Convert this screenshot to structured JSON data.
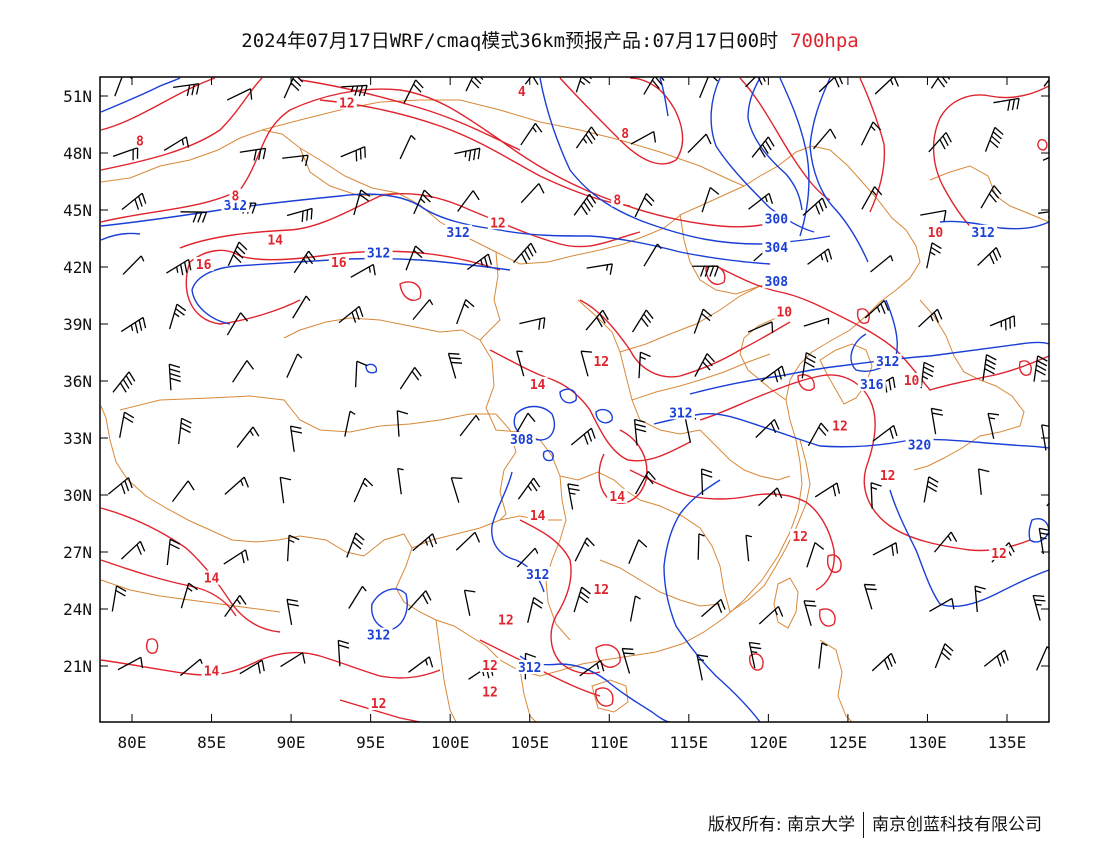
{
  "title": {
    "main": "2024年07月17日WRF/cmaq模式36km预报产品:07月17日00时",
    "level": "700hpa"
  },
  "axes": {
    "lat_labels": [
      "51N",
      "48N",
      "45N",
      "42N",
      "39N",
      "36N",
      "33N",
      "30N",
      "27N",
      "24N",
      "21N"
    ],
    "lat_values": [
      51,
      48,
      45,
      42,
      39,
      36,
      33,
      30,
      27,
      24,
      21
    ],
    "lon_labels": [
      "80E",
      "85E",
      "90E",
      "95E",
      "100E",
      "105E",
      "110E",
      "115E",
      "120E",
      "125E",
      "130E",
      "135E"
    ],
    "lon_values": [
      80,
      85,
      90,
      95,
      100,
      105,
      110,
      115,
      120,
      125,
      130,
      135
    ],
    "lon_range": [
      78,
      138
    ],
    "lat_range": [
      18,
      52
    ]
  },
  "colors": {
    "height_contour": "#1a3fd6",
    "temperature_contour": "#e0242e",
    "border": "#d8893a",
    "wind_barb": "#000000"
  },
  "labels": {
    "height": [
      {
        "text": "312",
        "lon": 86.5,
        "lat": 45.2
      },
      {
        "text": "312",
        "lon": 100.5,
        "lat": 43.8
      },
      {
        "text": "312",
        "lon": 95.5,
        "lat": 42.7
      },
      {
        "text": "300",
        "lon": 120.5,
        "lat": 44.5
      },
      {
        "text": "304",
        "lon": 120.5,
        "lat": 43.0
      },
      {
        "text": "308",
        "lon": 120.5,
        "lat": 41.2
      },
      {
        "text": "312",
        "lon": 133.5,
        "lat": 43.8
      },
      {
        "text": "312",
        "lon": 127.5,
        "lat": 37.0
      },
      {
        "text": "316",
        "lon": 126.5,
        "lat": 35.8
      },
      {
        "text": "312",
        "lon": 114.5,
        "lat": 34.3
      },
      {
        "text": "308",
        "lon": 104.5,
        "lat": 32.9
      },
      {
        "text": "320",
        "lon": 129.5,
        "lat": 32.6
      },
      {
        "text": "312",
        "lon": 105.5,
        "lat": 25.8
      },
      {
        "text": "312",
        "lon": 95.5,
        "lat": 22.6
      },
      {
        "text": "312",
        "lon": 105.0,
        "lat": 20.9
      }
    ],
    "temperature": [
      {
        "text": "12",
        "lon": 93.5,
        "lat": 50.6
      },
      {
        "text": "4",
        "lon": 104.5,
        "lat": 51.2
      },
      {
        "text": "8",
        "lon": 80.5,
        "lat": 48.6
      },
      {
        "text": "8",
        "lon": 111.0,
        "lat": 49.0
      },
      {
        "text": "8",
        "lon": 86.5,
        "lat": 45.7
      },
      {
        "text": "8",
        "lon": 110.5,
        "lat": 45.5
      },
      {
        "text": "12",
        "lon": 103.0,
        "lat": 44.3
      },
      {
        "text": "14",
        "lon": 89.0,
        "lat": 43.4
      },
      {
        "text": "16",
        "lon": 84.5,
        "lat": 42.1
      },
      {
        "text": "16",
        "lon": 93.0,
        "lat": 42.2
      },
      {
        "text": "10",
        "lon": 130.5,
        "lat": 43.8
      },
      {
        "text": "10",
        "lon": 121.0,
        "lat": 39.6
      },
      {
        "text": "12",
        "lon": 109.5,
        "lat": 37.0
      },
      {
        "text": "14",
        "lon": 105.5,
        "lat": 35.8
      },
      {
        "text": "10",
        "lon": 129.0,
        "lat": 36.0
      },
      {
        "text": "12",
        "lon": 124.5,
        "lat": 33.6
      },
      {
        "text": "12",
        "lon": 127.5,
        "lat": 31.0
      },
      {
        "text": "14",
        "lon": 110.5,
        "lat": 29.9
      },
      {
        "text": "14",
        "lon": 105.5,
        "lat": 28.9
      },
      {
        "text": "12",
        "lon": 122.0,
        "lat": 27.8
      },
      {
        "text": "12",
        "lon": 134.5,
        "lat": 26.9
      },
      {
        "text": "14",
        "lon": 85.0,
        "lat": 25.6
      },
      {
        "text": "12",
        "lon": 109.5,
        "lat": 25.0
      },
      {
        "text": "12",
        "lon": 103.5,
        "lat": 23.4
      },
      {
        "text": "12",
        "lon": 102.5,
        "lat": 21.0
      },
      {
        "text": "14",
        "lon": 85.0,
        "lat": 20.7
      },
      {
        "text": "12",
        "lon": 102.5,
        "lat": 19.6
      },
      {
        "text": "12",
        "lon": 95.5,
        "lat": 19.0
      }
    ]
  },
  "credit": {
    "left": "版权所有: 南京大学",
    "right": "南京创蓝科技有限公司"
  }
}
